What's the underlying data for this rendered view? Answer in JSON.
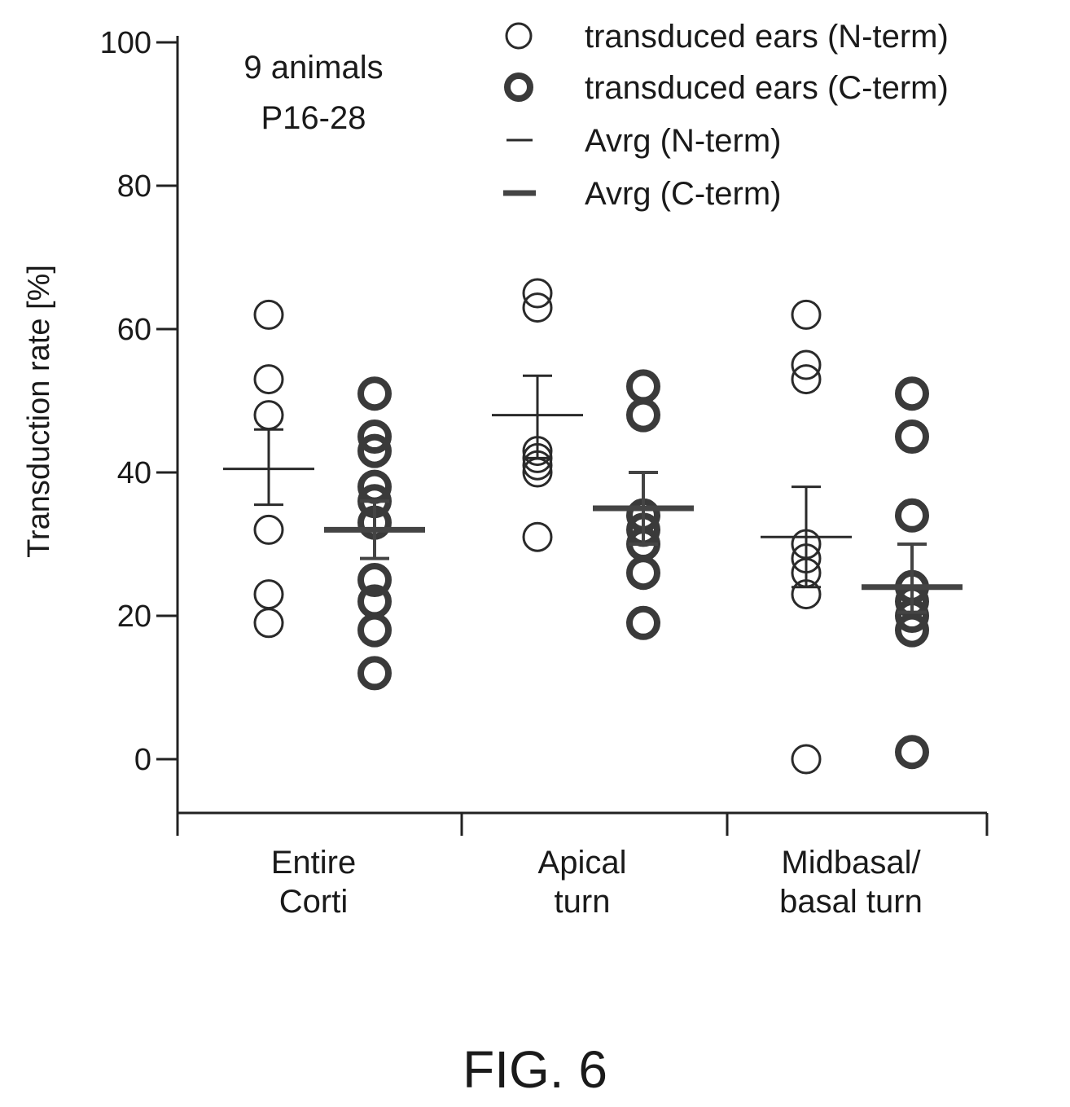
{
  "chart_data": {
    "type": "scatter",
    "ylabel": "Transduction rate [%]",
    "ylim": [
      0,
      100
    ],
    "yticks": [
      0,
      20,
      40,
      60,
      80,
      100
    ],
    "categories": [
      "Entire Corti",
      "Apical turn",
      "Midbasal/ basal turn"
    ],
    "category_lines": [
      [
        "Entire",
        "Corti"
      ],
      [
        "Apical",
        "turn"
      ],
      [
        "Midbasal/",
        "basal turn"
      ]
    ],
    "annotation_lines": [
      "9 animals",
      "P16-28"
    ],
    "legend_position": "top-right",
    "legend": [
      {
        "label": "transduced ears (N-term)",
        "marker": "thin-circle"
      },
      {
        "label": "transduced ears (C-term)",
        "marker": "thick-circle"
      },
      {
        "label": "Avrg (N-term)",
        "marker": "thin-line"
      },
      {
        "label": "Avrg (C-term)",
        "marker": "thick-line"
      }
    ],
    "series": [
      {
        "name": "transduced ears (N-term)",
        "points": [
          [
            62,
            53,
            48,
            32,
            23,
            19
          ],
          [
            65,
            63,
            43,
            42,
            41,
            40,
            31
          ],
          [
            62,
            55,
            53,
            30,
            28,
            26,
            23,
            0
          ]
        ]
      },
      {
        "name": "transduced ears (C-term)",
        "points": [
          [
            51,
            45,
            43,
            38,
            36,
            33,
            25,
            22,
            18,
            12
          ],
          [
            52,
            48,
            34,
            32,
            30,
            26,
            19
          ],
          [
            51,
            45,
            34,
            24,
            22,
            20,
            18,
            1
          ]
        ]
      }
    ],
    "averages": [
      {
        "name": "Avrg (N-term)",
        "mean": [
          40.5,
          48,
          31
        ],
        "err_low": [
          35.5,
          42,
          24
        ],
        "err_high": [
          46,
          53.5,
          38
        ]
      },
      {
        "name": "Avrg (C-term)",
        "mean": [
          32,
          35,
          24
        ],
        "err_low": [
          28,
          30,
          20.5
        ],
        "err_high": [
          36,
          40,
          30
        ]
      }
    ]
  },
  "figure_caption": "FIG. 6"
}
